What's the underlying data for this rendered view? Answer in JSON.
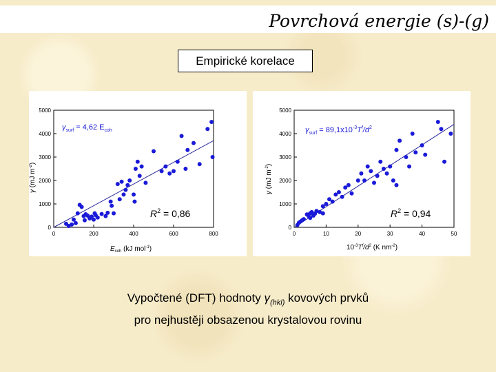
{
  "title": "Povrchová energie (s)-(g)",
  "subtitle": "Empirické korelace",
  "caption": {
    "line1_pre": "Vypočtené (DFT) hodnoty",
    "line1_symbol": "γ",
    "line1_sub": "(hkl)",
    "line1_post": "kovových prvků",
    "line2": "pro nejhustěji obsazenou krystalovou rovinu"
  },
  "colors": {
    "point": "#1a1ad8",
    "line": "#2a2a9a",
    "annotation": "#1a1ad8"
  },
  "chart_data": [
    {
      "type": "scatter",
      "equation": {
        "gamma": "γ",
        "sub": "surf",
        "rest": " = 4,62 E",
        "rest_sub": "coh"
      },
      "r2": {
        "label": "R",
        "sup": "2",
        "value": " = 0,86"
      },
      "xlabel": {
        "symbol": "E",
        "sub": "coh",
        "rest": " (kJ mol",
        "sup": "-1",
        "close": ")"
      },
      "ylabel": {
        "symbol": "γ",
        "rest": " (mJ m",
        "sup": "-2",
        "close": ")"
      },
      "xlim": [
        0,
        800
      ],
      "ylim": [
        0,
        5000
      ],
      "xticks": [
        "0",
        "200",
        "400",
        "600",
        "800"
      ],
      "yticks": [
        "0",
        "1000",
        "2000",
        "3000",
        "4000",
        "5000"
      ],
      "fit": {
        "x": [
          0,
          800
        ],
        "y": [
          0,
          3700
        ]
      },
      "points": [
        [
          62,
          150
        ],
        [
          75,
          60
        ],
        [
          90,
          120
        ],
        [
          100,
          330
        ],
        [
          110,
          180
        ],
        [
          120,
          600
        ],
        [
          130,
          960
        ],
        [
          140,
          870
        ],
        [
          150,
          480
        ],
        [
          155,
          300
        ],
        [
          160,
          560
        ],
        [
          170,
          500
        ],
        [
          180,
          380
        ],
        [
          190,
          460
        ],
        [
          200,
          330
        ],
        [
          205,
          600
        ],
        [
          210,
          520
        ],
        [
          220,
          420
        ],
        [
          240,
          570
        ],
        [
          260,
          480
        ],
        [
          270,
          620
        ],
        [
          285,
          1100
        ],
        [
          290,
          920
        ],
        [
          300,
          600
        ],
        [
          320,
          1850
        ],
        [
          330,
          1200
        ],
        [
          340,
          1950
        ],
        [
          350,
          1400
        ],
        [
          360,
          1600
        ],
        [
          370,
          1800
        ],
        [
          380,
          2000
        ],
        [
          400,
          1400
        ],
        [
          405,
          1100
        ],
        [
          410,
          2500
        ],
        [
          420,
          2800
        ],
        [
          430,
          2200
        ],
        [
          440,
          2600
        ],
        [
          460,
          1900
        ],
        [
          500,
          3250
        ],
        [
          540,
          2400
        ],
        [
          560,
          2600
        ],
        [
          580,
          2300
        ],
        [
          600,
          2400
        ],
        [
          620,
          2800
        ],
        [
          640,
          3900
        ],
        [
          660,
          2500
        ],
        [
          670,
          3300
        ],
        [
          700,
          3600
        ],
        [
          730,
          2700
        ],
        [
          770,
          4200
        ],
        [
          790,
          4500
        ],
        [
          795,
          3000
        ]
      ]
    },
    {
      "type": "scatter",
      "equation": {
        "gamma": "γ",
        "sub": "surf",
        "rest": " = 89,1x10",
        "rest_sup": "-3",
        "rest2": "T",
        "rest2_sup": "f",
        "rest3": "/d",
        "rest3_sup": "2"
      },
      "r2": {
        "label": "R",
        "sup": "2",
        "value": " = 0,94"
      },
      "xlabel": {
        "pre": "10",
        "pre_sup": "-3",
        "symbol": "T",
        "symbol_sup": "f",
        "rest": "/d",
        "rest_sup": "2",
        "unit": " (K nm",
        "unit_sup": "-2",
        "close": ")"
      },
      "ylabel": {
        "symbol": "γ",
        "rest": " (mJ m",
        "sup": "-2",
        "close": ")"
      },
      "xlim": [
        0,
        50
      ],
      "ylim": [
        0,
        5000
      ],
      "xticks": [
        "0",
        "10",
        "20",
        "30",
        "40",
        "50"
      ],
      "yticks": [
        "0",
        "1000",
        "2000",
        "3000",
        "4000",
        "5000"
      ],
      "fit": {
        "x": [
          0,
          50
        ],
        "y": [
          0,
          4400
        ]
      },
      "points": [
        [
          1,
          100
        ],
        [
          1.5,
          200
        ],
        [
          2,
          250
        ],
        [
          2.5,
          300
        ],
        [
          3,
          350
        ],
        [
          4,
          550
        ],
        [
          4.5,
          480
        ],
        [
          5,
          600
        ],
        [
          5,
          400
        ],
        [
          5.5,
          650
        ],
        [
          6,
          500
        ],
        [
          6.5,
          580
        ],
        [
          7,
          700
        ],
        [
          8,
          650
        ],
        [
          9,
          600
        ],
        [
          9,
          900
        ],
        [
          10,
          1000
        ],
        [
          11,
          1200
        ],
        [
          12,
          1100
        ],
        [
          13,
          1400
        ],
        [
          14,
          1500
        ],
        [
          15,
          1300
        ],
        [
          16,
          1700
        ],
        [
          17,
          1800
        ],
        [
          18,
          1450
        ],
        [
          20,
          2000
        ],
        [
          21,
          2300
        ],
        [
          22,
          2000
        ],
        [
          23,
          2600
        ],
        [
          24,
          2400
        ],
        [
          25,
          1900
        ],
        [
          26,
          2200
        ],
        [
          27,
          2800
        ],
        [
          28,
          2500
        ],
        [
          29,
          2300
        ],
        [
          30,
          2600
        ],
        [
          31,
          2000
        ],
        [
          32,
          3300
        ],
        [
          32,
          1800
        ],
        [
          33,
          3700
        ],
        [
          35,
          3000
        ],
        [
          36,
          2600
        ],
        [
          37,
          4000
        ],
        [
          38,
          3200
        ],
        [
          40,
          3500
        ],
        [
          41,
          3100
        ],
        [
          45,
          4500
        ],
        [
          46,
          4200
        ],
        [
          47,
          2800
        ],
        [
          49,
          4000
        ]
      ]
    }
  ]
}
